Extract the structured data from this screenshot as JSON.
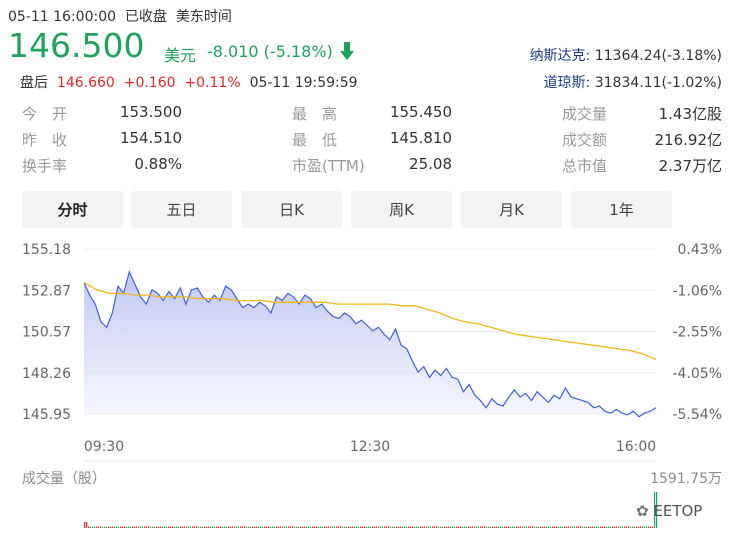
{
  "header": {
    "datetime": "05-11 16:00:00",
    "status": "已收盘",
    "timezone": "美东时间",
    "price": "146.500",
    "currency": "美元",
    "change": "-8.010",
    "change_pct": "(-5.18%)",
    "after_label": "盘后",
    "after_price": "146.660",
    "after_change": "+0.160",
    "after_pct": "+0.11%",
    "after_time": "05-11 19:59:59"
  },
  "indices": [
    {
      "name": "纳斯达克:",
      "value": "11364.24(-3.18%)"
    },
    {
      "name": "道琼斯:",
      "value": "31834.11(-1.02%)"
    }
  ],
  "stats": {
    "open_label": "今　开",
    "open": "153.500",
    "prev_label": "昨　收",
    "prev": "154.510",
    "turnover_label": "换手率",
    "turnover": "0.88%",
    "high_label": "最　高",
    "high": "155.450",
    "low_label": "最　低",
    "low": "145.810",
    "pe_label": "市盈(TTM)",
    "pe": "25.08",
    "volume_label": "成交量",
    "volume": "1.43亿股",
    "amount_label": "成交额",
    "amount": "216.92亿",
    "mktcap_label": "总市值",
    "mktcap": "2.37万亿"
  },
  "tabs": [
    "分时",
    "五日",
    "日K",
    "周K",
    "月K",
    "1年"
  ],
  "chart_data": {
    "type": "area",
    "y_left_ticks": [
      "155.18",
      "152.87",
      "150.57",
      "148.26",
      "145.95"
    ],
    "y_right_ticks": [
      "0.43%",
      "-1.06%",
      "-2.55%",
      "-4.05%",
      "-5.54%"
    ],
    "x_ticks": [
      "09:30",
      "12:30",
      "16:00"
    ],
    "ylim": [
      145.95,
      155.18
    ],
    "series": [
      {
        "values": [
          153.3,
          152.6,
          152.1,
          151.1,
          150.8,
          151.6,
          153.1,
          152.7,
          153.9,
          153.2,
          152.5,
          152.1,
          152.9,
          152.7,
          152.3,
          152.8,
          152.4,
          153.0,
          152.1,
          152.9,
          153.0,
          152.5,
          152.2,
          152.6,
          152.3,
          153.1,
          152.9,
          152.4,
          151.9,
          152.1,
          151.9,
          152.2,
          152.0,
          151.6,
          152.5,
          152.3,
          152.7,
          152.5,
          152.1,
          152.6,
          152.4,
          151.9,
          152.1,
          151.7,
          151.4,
          151.3,
          151.6,
          151.4,
          151.0,
          151.2,
          150.9,
          150.6,
          150.8,
          150.4,
          150.1,
          150.7,
          149.8,
          149.6,
          148.9,
          148.3,
          148.6,
          148.0,
          148.4,
          148.1,
          148.5,
          148.0,
          147.9,
          147.2,
          147.6,
          147.0,
          146.7,
          146.3,
          146.8,
          146.5,
          146.4,
          146.9,
          147.3,
          146.9,
          147.1,
          146.7,
          147.2,
          146.9,
          146.6,
          147.0,
          146.8,
          147.4,
          146.9,
          146.8,
          146.7,
          146.6,
          146.3,
          146.4,
          146.1,
          146.0,
          146.2,
          146.0,
          145.9,
          146.1,
          145.8,
          146.0,
          146.1,
          146.3
        ]
      },
      {
        "values": [
          153.3,
          152.9,
          152.7,
          152.7,
          152.6,
          152.6,
          152.5,
          152.5,
          152.5,
          152.4,
          152.4,
          152.4,
          152.3,
          152.3,
          152.3,
          152.2,
          152.2,
          152.2,
          152.2,
          152.2,
          152.1,
          152.1,
          152.1,
          152.1,
          152.1,
          152.0,
          152.0,
          151.8,
          151.6,
          151.3,
          151.1,
          151.0,
          150.8,
          150.6,
          150.4,
          150.3,
          150.2,
          150.1,
          150.0,
          149.9,
          149.8,
          149.7,
          149.6,
          149.5,
          149.3,
          149.0
        ]
      }
    ],
    "volume_label": "成交量（股）",
    "volume_max": "1591.75万",
    "watermark": "EETOP"
  }
}
